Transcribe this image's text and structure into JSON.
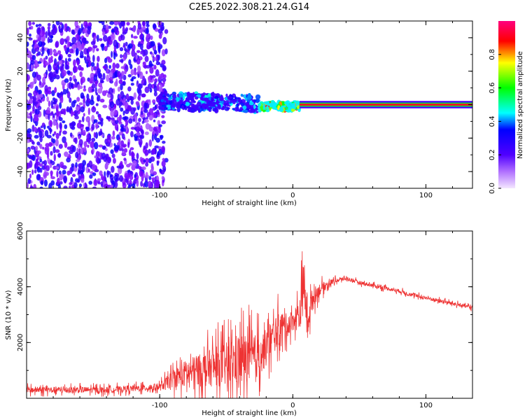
{
  "title": "C2E5.2022.308.21.24.G14",
  "chart_data": [
    {
      "type": "heatmap",
      "xlabel": "Height of straight line (km)",
      "ylabel": "Frequency (Hz)",
      "xlim": [
        -200,
        135
      ],
      "ylim": [
        -50,
        50
      ],
      "xticks": [
        -100,
        0,
        100
      ],
      "xtick_labels": [
        "-100",
        "0",
        "100"
      ],
      "yticks": [
        -40,
        -20,
        0,
        20,
        40
      ],
      "ytick_labels": [
        "-40",
        "-20",
        "0",
        "20",
        "40"
      ],
      "colorbar": {
        "label": "Normalized spectral amplitude",
        "range": [
          0,
          1
        ],
        "ticks": [
          0.0,
          0.2,
          0.4,
          0.6,
          0.8
        ],
        "tick_labels": [
          "0.0",
          "0.2",
          "0.4",
          "0.6",
          "0.8"
        ],
        "colors": [
          "#f4e6ff",
          "#7a00ff",
          "#0000ff",
          "#00ffff",
          "#00ff00",
          "#ffff00",
          "#ff0000",
          "#ff007f"
        ]
      },
      "regions": [
        {
          "x": [
            -200,
            -100
          ],
          "freq_span": [
            -50,
            50
          ],
          "level": 0.12,
          "description_key": "noise"
        },
        {
          "x": [
            -100,
            -25
          ],
          "freq_span": [
            -5,
            5
          ],
          "level": 0.35
        },
        {
          "x": [
            -25,
            5
          ],
          "freq_span": [
            -3,
            2
          ],
          "level": 0.7
        },
        {
          "x": [
            5,
            135
          ],
          "freq_span": [
            -1,
            1
          ],
          "level": 0.9
        }
      ],
      "grid": false
    },
    {
      "type": "line",
      "xlabel": "Height of straight line (km)",
      "ylabel": "SNR (10 * v/v)",
      "xlim": [
        -200,
        135
      ],
      "ylim": [
        0,
        6000
      ],
      "xticks": [
        -100,
        0,
        100
      ],
      "xtick_labels": [
        "-100",
        "0",
        "100"
      ],
      "yticks": [
        2000,
        4000,
        6000
      ],
      "ytick_labels": [
        "2000",
        "4000",
        "6000"
      ],
      "color": "#ee3333",
      "x": [
        -200,
        -180,
        -160,
        -140,
        -120,
        -100,
        -90,
        -80,
        -70,
        -60,
        -50,
        -40,
        -30,
        -20,
        -15,
        -10,
        -5,
        0,
        5,
        8,
        10,
        12,
        15,
        20,
        30,
        40,
        50,
        60,
        70,
        80,
        90,
        100,
        110,
        120,
        135
      ],
      "y": [
        300,
        300,
        300,
        300,
        350,
        400,
        700,
        900,
        1000,
        1100,
        1200,
        1400,
        1400,
        1800,
        2200,
        2500,
        2600,
        2800,
        3000,
        4000,
        3300,
        3000,
        3600,
        3900,
        4200,
        4300,
        4150,
        4050,
        3950,
        3850,
        3700,
        3600,
        3500,
        3400,
        3250
      ],
      "spread": [
        250,
        250,
        250,
        250,
        250,
        300,
        700,
        1100,
        1300,
        1500,
        1800,
        2200,
        1900,
        1500,
        1400,
        1300,
        1000,
        800,
        1300,
        2000,
        1500,
        1300,
        800,
        500,
        200,
        150,
        150,
        150,
        150,
        150,
        150,
        150,
        150,
        150,
        150
      ],
      "grid": false
    }
  ]
}
